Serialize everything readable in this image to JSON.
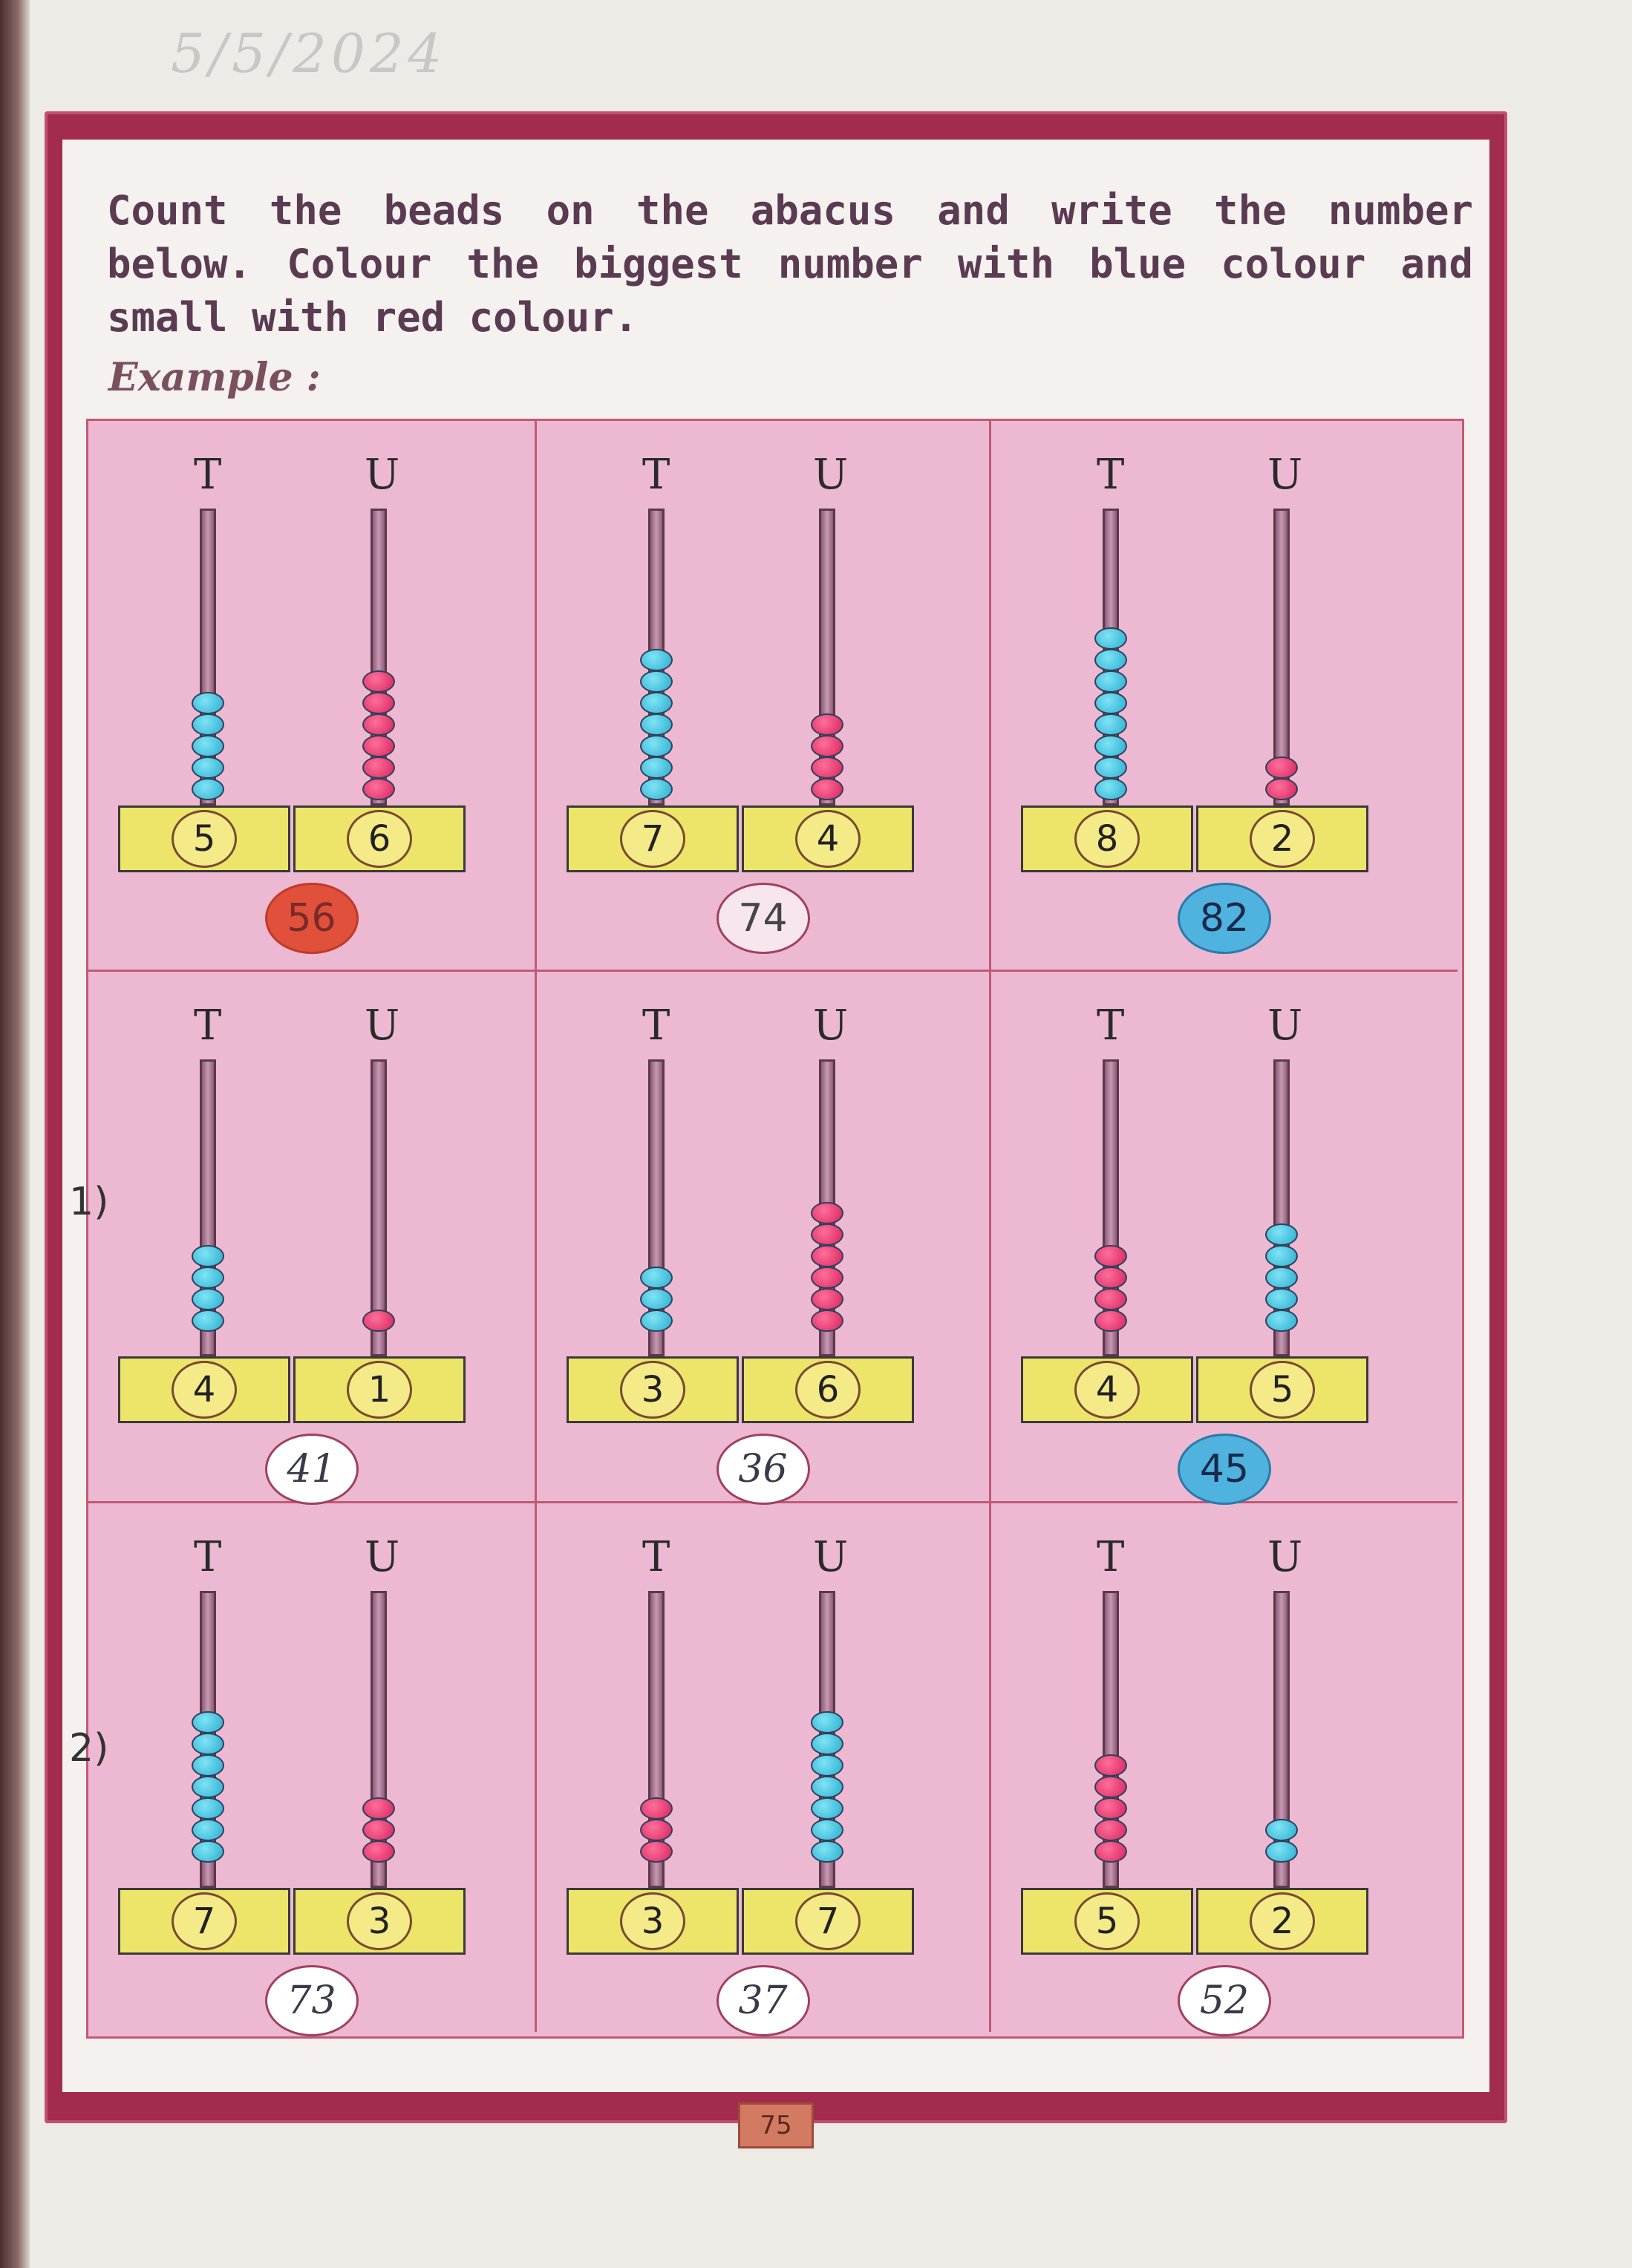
{
  "handwritten_date": "5/5/2024",
  "instructions": "Count the beads on the abacus and write the number below. Colour the biggest number with blue colour and small with red colour.",
  "example_label": "Example :",
  "row_labels": [
    "1)",
    "2)"
  ],
  "page_number": "75",
  "abaci": [
    {
      "tens": "5",
      "units": "6",
      "tens_beads": 5,
      "units_beads": 6,
      "tens_color": "blue",
      "units_color": "pink",
      "answer": "56",
      "answer_style": "red"
    },
    {
      "tens": "7",
      "units": "4",
      "tens_beads": 7,
      "units_beads": 4,
      "tens_color": "blue",
      "units_color": "pink",
      "answer": "74",
      "answer_style": "plain"
    },
    {
      "tens": "8",
      "units": "2",
      "tens_beads": 8,
      "units_beads": 2,
      "tens_color": "blue",
      "units_color": "pink",
      "answer": "82",
      "answer_style": "blue"
    },
    {
      "tens": "4",
      "units": "1",
      "tens_beads": 4,
      "units_beads": 1,
      "tens_color": "blue",
      "units_color": "pink",
      "answer": "41",
      "answer_style": "hw"
    },
    {
      "tens": "3",
      "units": "6",
      "tens_beads": 3,
      "units_beads": 6,
      "tens_color": "blue",
      "units_color": "pink",
      "answer": "36",
      "answer_style": "hw"
    },
    {
      "tens": "4",
      "units": "5",
      "tens_beads": 4,
      "units_beads": 5,
      "tens_color": "pink",
      "units_color": "blue",
      "answer": "45",
      "answer_style": "blue"
    },
    {
      "tens": "7",
      "units": "3",
      "tens_beads": 7,
      "units_beads": 3,
      "tens_color": "blue",
      "units_color": "pink",
      "answer": "73",
      "answer_style": "hw"
    },
    {
      "tens": "3",
      "units": "7",
      "tens_beads": 3,
      "units_beads": 7,
      "tens_color": "pink",
      "units_color": "blue",
      "answer": "37",
      "answer_style": "hw"
    },
    {
      "tens": "5",
      "units": "2",
      "tens_beads": 5,
      "units_beads": 2,
      "tens_color": "pink",
      "units_color": "blue",
      "answer": "52",
      "answer_style": "hw"
    }
  ],
  "column_labels": {
    "tens": "T",
    "units": "U"
  }
}
